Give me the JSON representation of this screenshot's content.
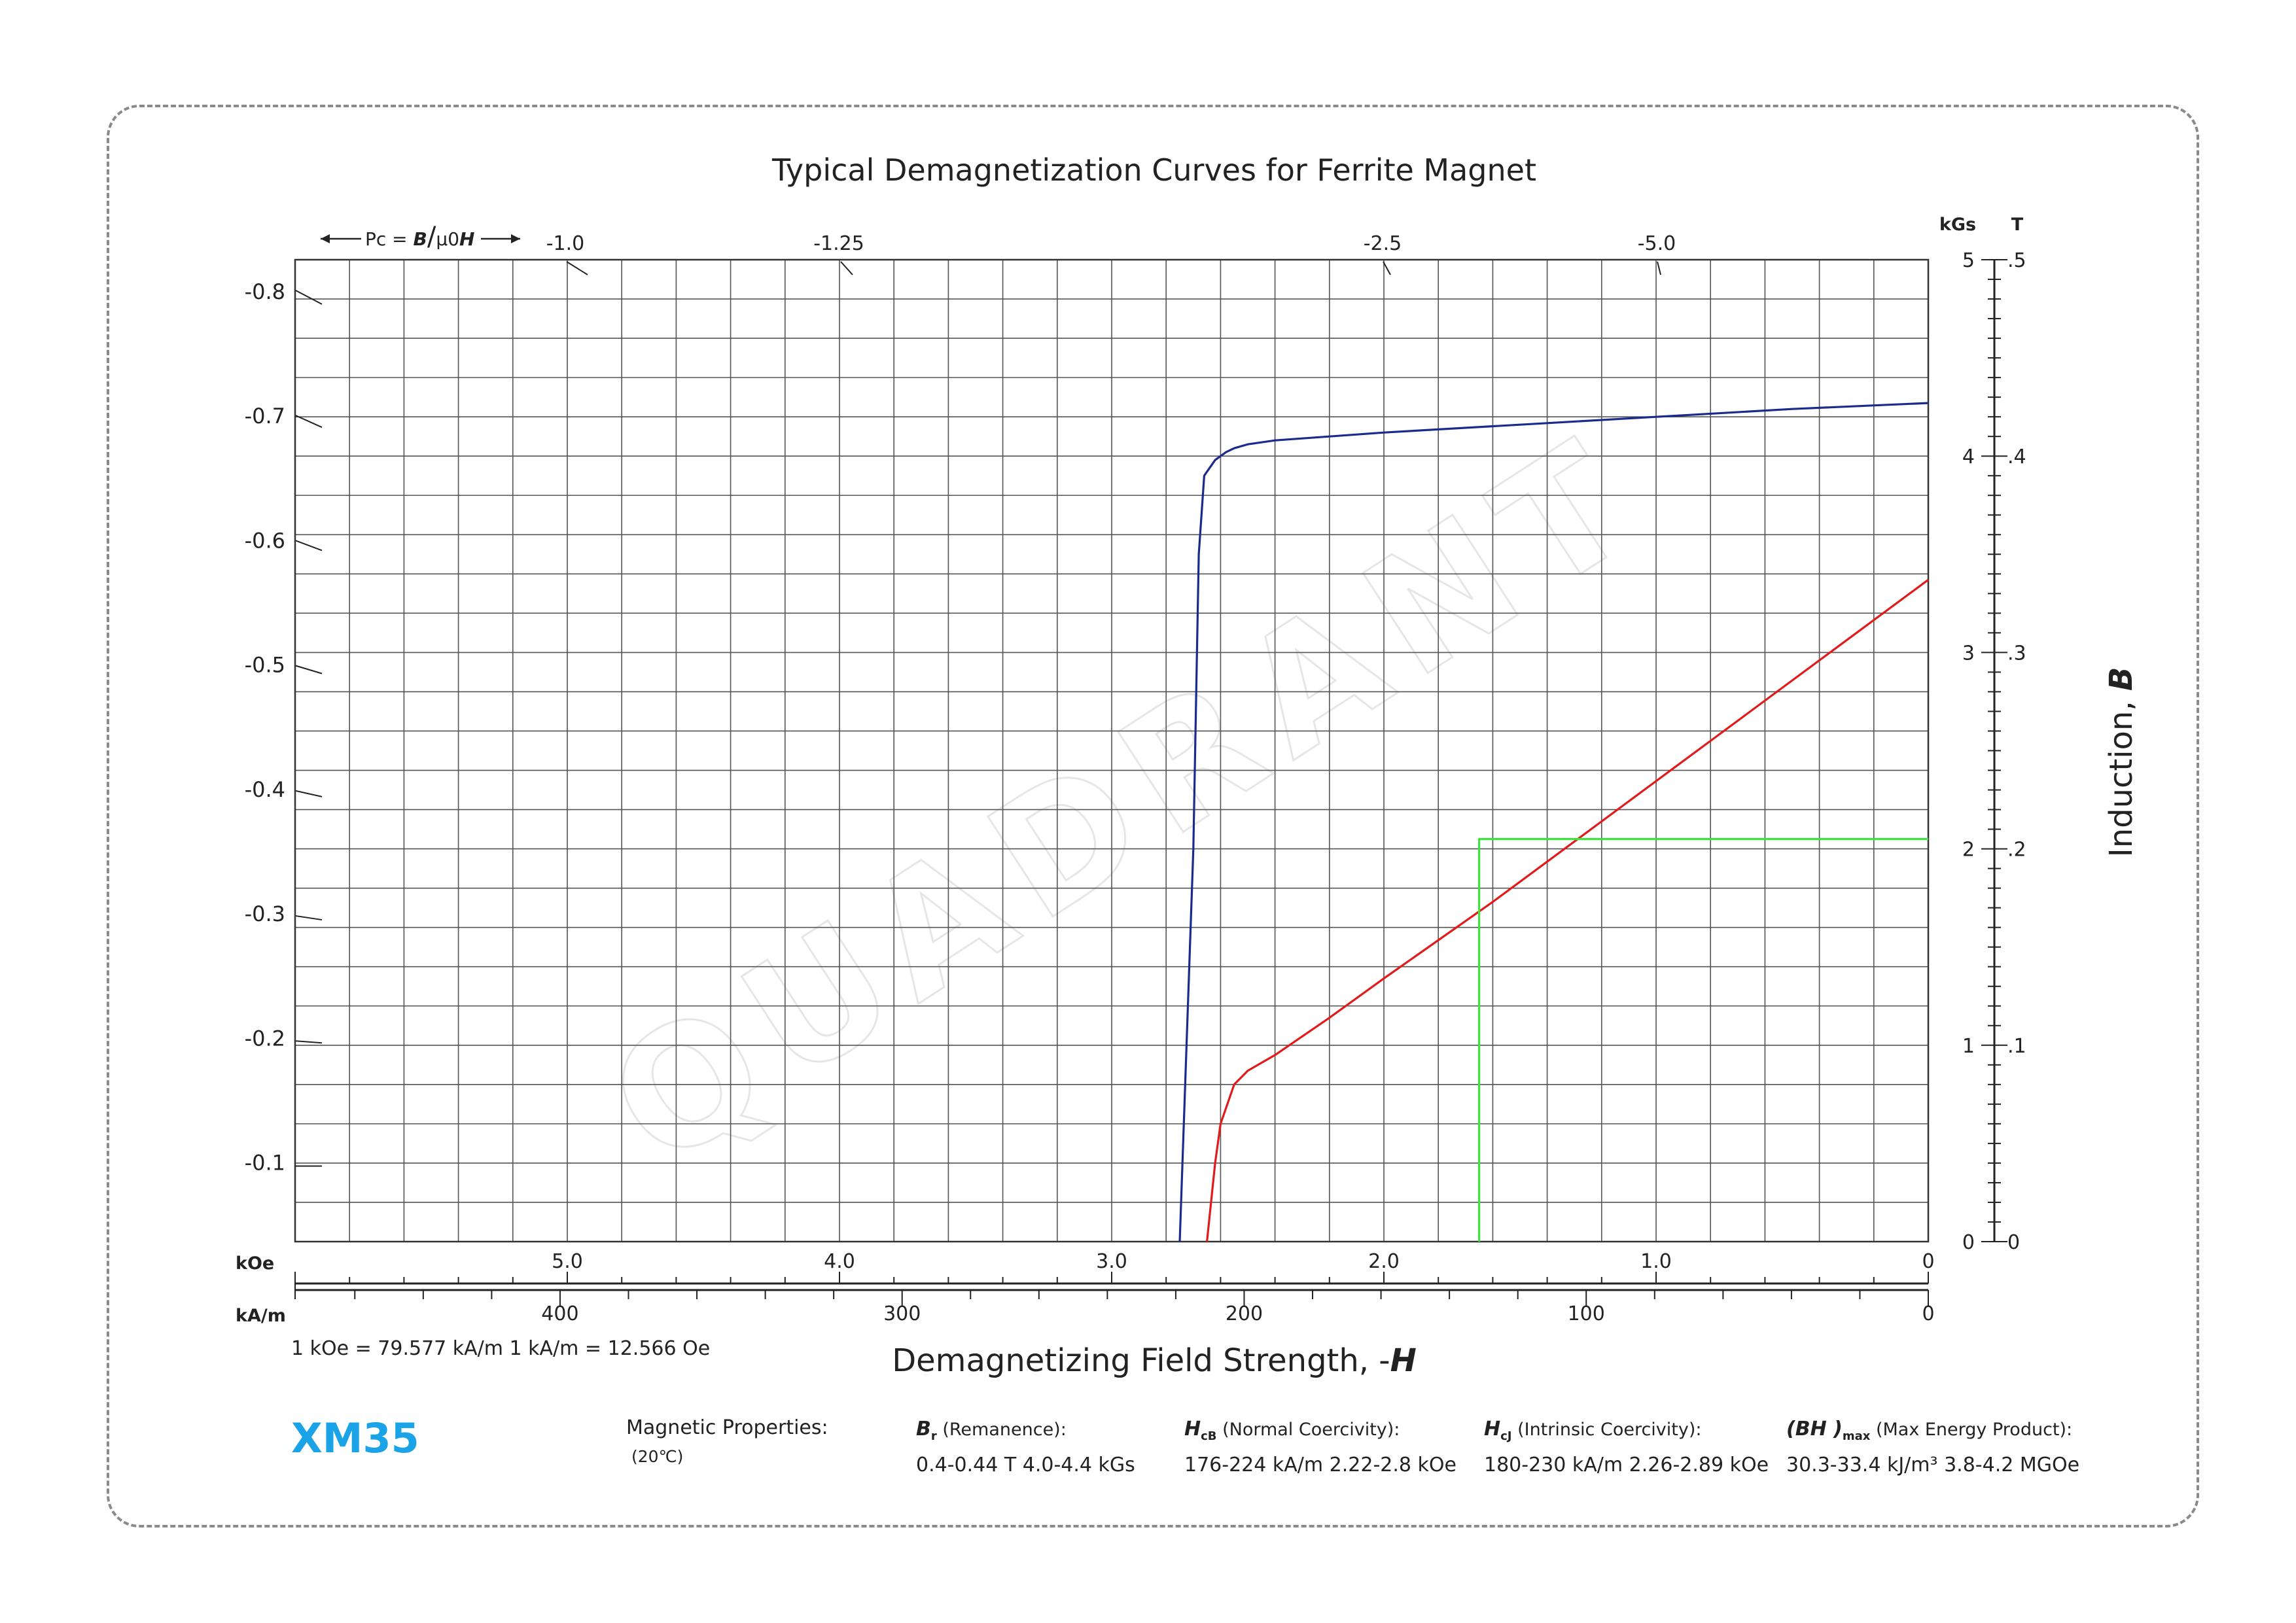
{
  "chart_data": {
    "type": "line",
    "title": "Typical Demagnetization Curves for Ferrite Magnet",
    "xlabel": "Demagnetizing Field Strength, -",
    "xlabel_symbol": "H",
    "ylabel": "Induction, ",
    "ylabel_symbol": "B",
    "x_unit_koe": "kOe",
    "x_unit_kam": "kA/m",
    "y_unit_kgs": "kGs",
    "y_unit_t": "T",
    "xlim_koe": [
      6.0,
      0
    ],
    "ylim_kgs": [
      0,
      5
    ],
    "x_ticks_koe": [
      "5.0",
      "4.0",
      "3.0",
      "2.0",
      "1.0",
      "0"
    ],
    "x_ticks_kam": [
      "400",
      "300",
      "200",
      "100",
      "0"
    ],
    "y_ticks_kgs": [
      "0",
      "1",
      "2",
      "3",
      "4",
      "5"
    ],
    "y_ticks_t": [
      "0",
      ".1",
      ".2",
      ".3",
      ".4",
      ".5"
    ],
    "left_ticks": [
      "-0.8",
      "-0.7",
      "-0.6",
      "-0.5",
      "-0.4",
      "-0.3",
      "-0.2",
      "-0.1"
    ],
    "pc_label": "Pc = ",
    "pc_ticks": [
      "-1.0",
      "-1.25",
      "-2.5",
      "-5.0"
    ],
    "grid": true,
    "series": [
      {
        "color": "#1a2b8c",
        "x_koe": [
          2.75,
          2.7,
          2.68,
          2.66,
          2.62,
          2.58,
          2.55,
          2.5,
          2.4,
          2.2,
          2.0,
          1.5,
          1.0,
          0.5,
          0
        ],
        "y_kgs": [
          0,
          2.0,
          3.5,
          3.9,
          3.98,
          4.02,
          4.04,
          4.06,
          4.08,
          4.1,
          4.12,
          4.16,
          4.2,
          4.24,
          4.27
        ]
      },
      {
        "color": "#e11b1b",
        "x_koe": [
          2.65,
          2.62,
          2.6,
          2.55,
          2.5,
          2.4,
          2.2,
          2.0,
          1.6,
          1.2,
          0.8,
          0.4,
          0
        ],
        "y_kgs": [
          0,
          0.4,
          0.6,
          0.8,
          0.87,
          0.95,
          1.14,
          1.34,
          1.73,
          2.14,
          2.55,
          2.96,
          3.37
        ]
      },
      {
        "color": "#3de63d",
        "x_koe": [
          1.65,
          1.65,
          0
        ],
        "y_kgs": [
          0,
          2.05,
          2.05
        ]
      }
    ]
  },
  "conversion_text": "1 kOe = 79.577 kA/m   1 kA/m = 12.566 Oe",
  "grade": "XM35",
  "props": {
    "heading": "Magnetic Properties:",
    "temp": "(20℃)",
    "br_symbol": "B",
    "br_sub": "r",
    "br_label": " (Remanence):",
    "br_values": "0.4-0.44 T   4.0-4.4 kGs",
    "hcb_symbol": "H",
    "hcb_sub": "cB",
    "hcb_label": " (Normal Coercivity):",
    "hcb_values": "176-224 kA/m   2.22-2.8 kOe",
    "hcj_symbol": "H",
    "hcj_sub": "cJ",
    "hcj_label": "  (Intrinsic Coercivity):",
    "hcj_values": "180-230 kA/m    2.26-2.89 kOe",
    "bh_symbol": "(BH )",
    "bh_sub": "max",
    "bh_label": " (Max Energy Product):",
    "bh_values": "30.3-33.4 kJ/m³   3.8-4.2 MGOe"
  },
  "watermark": "QUADRANT"
}
